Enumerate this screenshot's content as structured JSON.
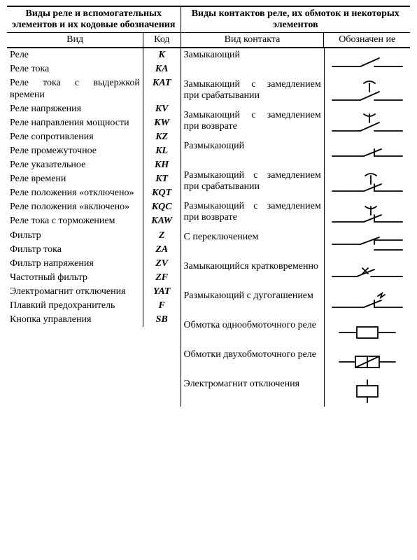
{
  "header": {
    "left": "Виды реле и вспомогательных элементов и их кодовые обозначения",
    "right": "Виды контактов реле, их обмоток и некоторых элементов",
    "c1": "Вид",
    "c2": "Код",
    "c3": "Вид контакта",
    "c4": "Обозначен ие"
  },
  "left_rows": [
    {
      "name": "Реле",
      "code": "K"
    },
    {
      "name": "Реле тока",
      "code": "KA"
    },
    {
      "name": "Реле тока с выдержкой времени",
      "code": "KAT"
    },
    {
      "name": "Реле напряжения",
      "code": "KV"
    },
    {
      "name": "Реле направления мощности",
      "code": "KW"
    },
    {
      "name": "Реле сопротивления",
      "code": "KZ"
    },
    {
      "name": "Реле промежуточное",
      "code": "KL"
    },
    {
      "name": "Реле указательное",
      "code": "KH"
    },
    {
      "name": "Реле времени",
      "code": "KT"
    },
    {
      "name": "Реле положения «отключено»",
      "code": "KQT"
    },
    {
      "name": "Реле положения «включено»",
      "code": "KQC"
    },
    {
      "name": "Реле тока с торможением",
      "code": "KAW"
    },
    {
      "name": "Фильтр",
      "code": "Z"
    },
    {
      "name": "Фильтр тока",
      "code": "ZA"
    },
    {
      "name": "Фильтр напряжения",
      "code": "ZV"
    },
    {
      "name": "Частотный фильтр",
      "code": "ZF"
    },
    {
      "name": "Электромагнит от­ключения",
      "code": "YAT"
    },
    {
      "name": "Плавкий предохрани­тель",
      "code": "F"
    },
    {
      "name": "Кнопка управления",
      "code": "SB"
    }
  ],
  "right_rows": [
    {
      "name": "Замыкающий",
      "sym": "no"
    },
    {
      "name": "Замыкающий с за­медлением при сраба­тывании",
      "sym": "no_delay_op"
    },
    {
      "name": "Замыкающий с замед­лением при возврате",
      "sym": "no_delay_rel"
    },
    {
      "name": "Размыкающий",
      "sym": "nc"
    },
    {
      "name": "Размыкающий с за­медлением при сраба­тывании",
      "sym": "nc_delay_op"
    },
    {
      "name": "Размыкающий с за­медлением при воз­врате",
      "sym": "nc_delay_rel"
    },
    {
      "name": "С переключением",
      "sym": "co"
    },
    {
      "name": "Замыкающийся крат­ковременно",
      "sym": "pulse"
    },
    {
      "name": "Размыкающий с дуго­гашением",
      "sym": "arc"
    },
    {
      "name": "Обмотка однообмо­точного реле",
      "sym": "coil1"
    },
    {
      "name": "Обмотки двухобмо­точного реле",
      "sym": "coil2"
    },
    {
      "name": "Электромагнит от­ключения",
      "sym": "em"
    }
  ],
  "style": {
    "stroke": "#000",
    "sw": 1.6,
    "col_w": {
      "c1": 190,
      "c2": 50,
      "c3": 190,
      "c4": 120
    }
  }
}
